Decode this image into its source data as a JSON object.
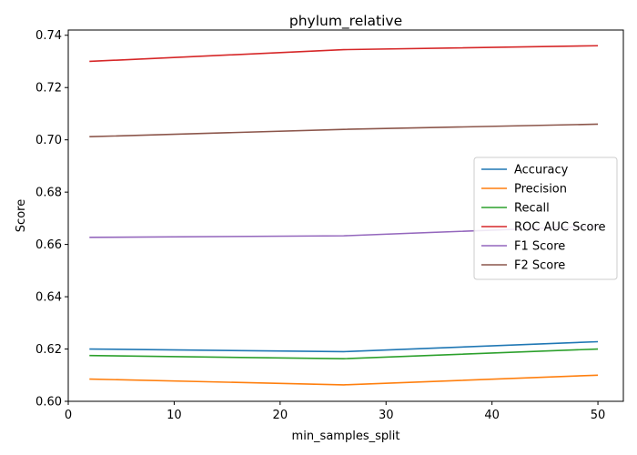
{
  "chart_data": {
    "type": "line",
    "title": "phylum_relative",
    "xlabel": "min_samples_split",
    "ylabel": "Score",
    "x": [
      2,
      26,
      50
    ],
    "xlim": [
      0,
      52.4
    ],
    "ylim": [
      0.6,
      0.742
    ],
    "xticks": [
      "0",
      "10",
      "20",
      "30",
      "40",
      "50"
    ],
    "yticks": [
      "0.60",
      "0.62",
      "0.64",
      "0.66",
      "0.68",
      "0.70",
      "0.72",
      "0.74"
    ],
    "grid": false,
    "legend_position": "center-right",
    "series": [
      {
        "name": "Accuracy",
        "color": "#1f77b4",
        "values": [
          0.62,
          0.619,
          0.6228
        ]
      },
      {
        "name": "Precision",
        "color": "#ff7f0e",
        "values": [
          0.6085,
          0.6063,
          0.61
        ]
      },
      {
        "name": "Recall",
        "color": "#2ca02c",
        "values": [
          0.6175,
          0.6163,
          0.62
        ]
      },
      {
        "name": "ROC AUC Score",
        "color": "#d62728",
        "values": [
          0.73,
          0.7345,
          0.736
        ]
      },
      {
        "name": "F1 Score",
        "color": "#9467bd",
        "values": [
          0.6627,
          0.6633,
          0.667
        ]
      },
      {
        "name": "F2 Score",
        "color": "#8c564b",
        "values": [
          0.7012,
          0.704,
          0.706
        ]
      }
    ]
  }
}
